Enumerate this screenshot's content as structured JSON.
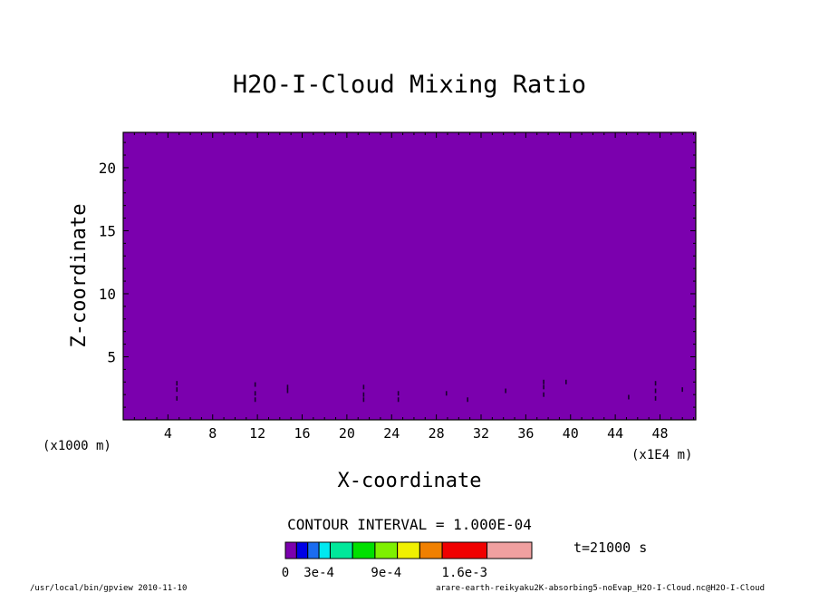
{
  "chart_data": {
    "type": "heatmap",
    "title": "H2O-I-Cloud Mixing Ratio",
    "xlabel": "X-coordinate",
    "ylabel": "Z-coordinate",
    "x_unit_left": "(x1000 m)",
    "x_unit_right": "(x1E4 m)",
    "xlim": [
      0,
      51.2
    ],
    "ylim": [
      0,
      22.8
    ],
    "xticks": [
      4,
      8,
      12,
      16,
      20,
      24,
      28,
      32,
      36,
      40,
      44,
      48
    ],
    "yticks": [
      5,
      10,
      15,
      20
    ],
    "field_value": 0,
    "field_color": "#7b00ae",
    "contour_interval_label": "CONTOUR INTERVAL = 1.000E-04",
    "time_label": "t=21000 s",
    "colorbar": {
      "colors": [
        "#7b00ae",
        "#0000e6",
        "#1b6cf0",
        "#00e8f0",
        "#00e89a",
        "#00e000",
        "#7ef000",
        "#f0f000",
        "#f08000",
        "#f00000",
        "#f0a0a0"
      ],
      "tick_labels": [
        {
          "value": 0,
          "label": "0"
        },
        {
          "value": 0.0003,
          "label": "3e-4"
        },
        {
          "value": 0.0009,
          "label": "9e-4"
        },
        {
          "value": 0.0016,
          "label": "1.6e-3"
        }
      ],
      "boundaries": [
        0,
        0.0001,
        0.0002,
        0.0003,
        0.0004,
        0.0006,
        0.0008,
        0.001,
        0.0012,
        0.0014,
        0.0018,
        0.0022
      ]
    },
    "footer_left": "/usr/local/bin/gpview  2010-11-10",
    "footer_right": "arare-earth-reikyaku2K-absorbing5-noEvap_H2O-I-Cloud.nc@H2O-I-Cloud",
    "specks": [
      [
        4.8,
        2.9
      ],
      [
        4.8,
        2.4
      ],
      [
        4.8,
        1.7
      ],
      [
        11.8,
        2.8
      ],
      [
        11.8,
        2.1
      ],
      [
        11.8,
        1.6
      ],
      [
        14.7,
        2.6
      ],
      [
        14.7,
        2.3
      ],
      [
        21.5,
        2.6
      ],
      [
        21.5,
        2.0
      ],
      [
        21.5,
        1.6
      ],
      [
        24.6,
        2.1
      ],
      [
        24.6,
        1.6
      ],
      [
        28.9,
        2.1
      ],
      [
        30.8,
        1.6
      ],
      [
        34.2,
        2.3
      ],
      [
        37.6,
        3.0
      ],
      [
        37.6,
        2.6
      ],
      [
        37.6,
        2.0
      ],
      [
        39.6,
        3.0
      ],
      [
        45.2,
        1.8
      ],
      [
        47.6,
        2.9
      ],
      [
        47.6,
        2.3
      ],
      [
        47.6,
        1.7
      ],
      [
        50.0,
        2.4
      ]
    ]
  }
}
